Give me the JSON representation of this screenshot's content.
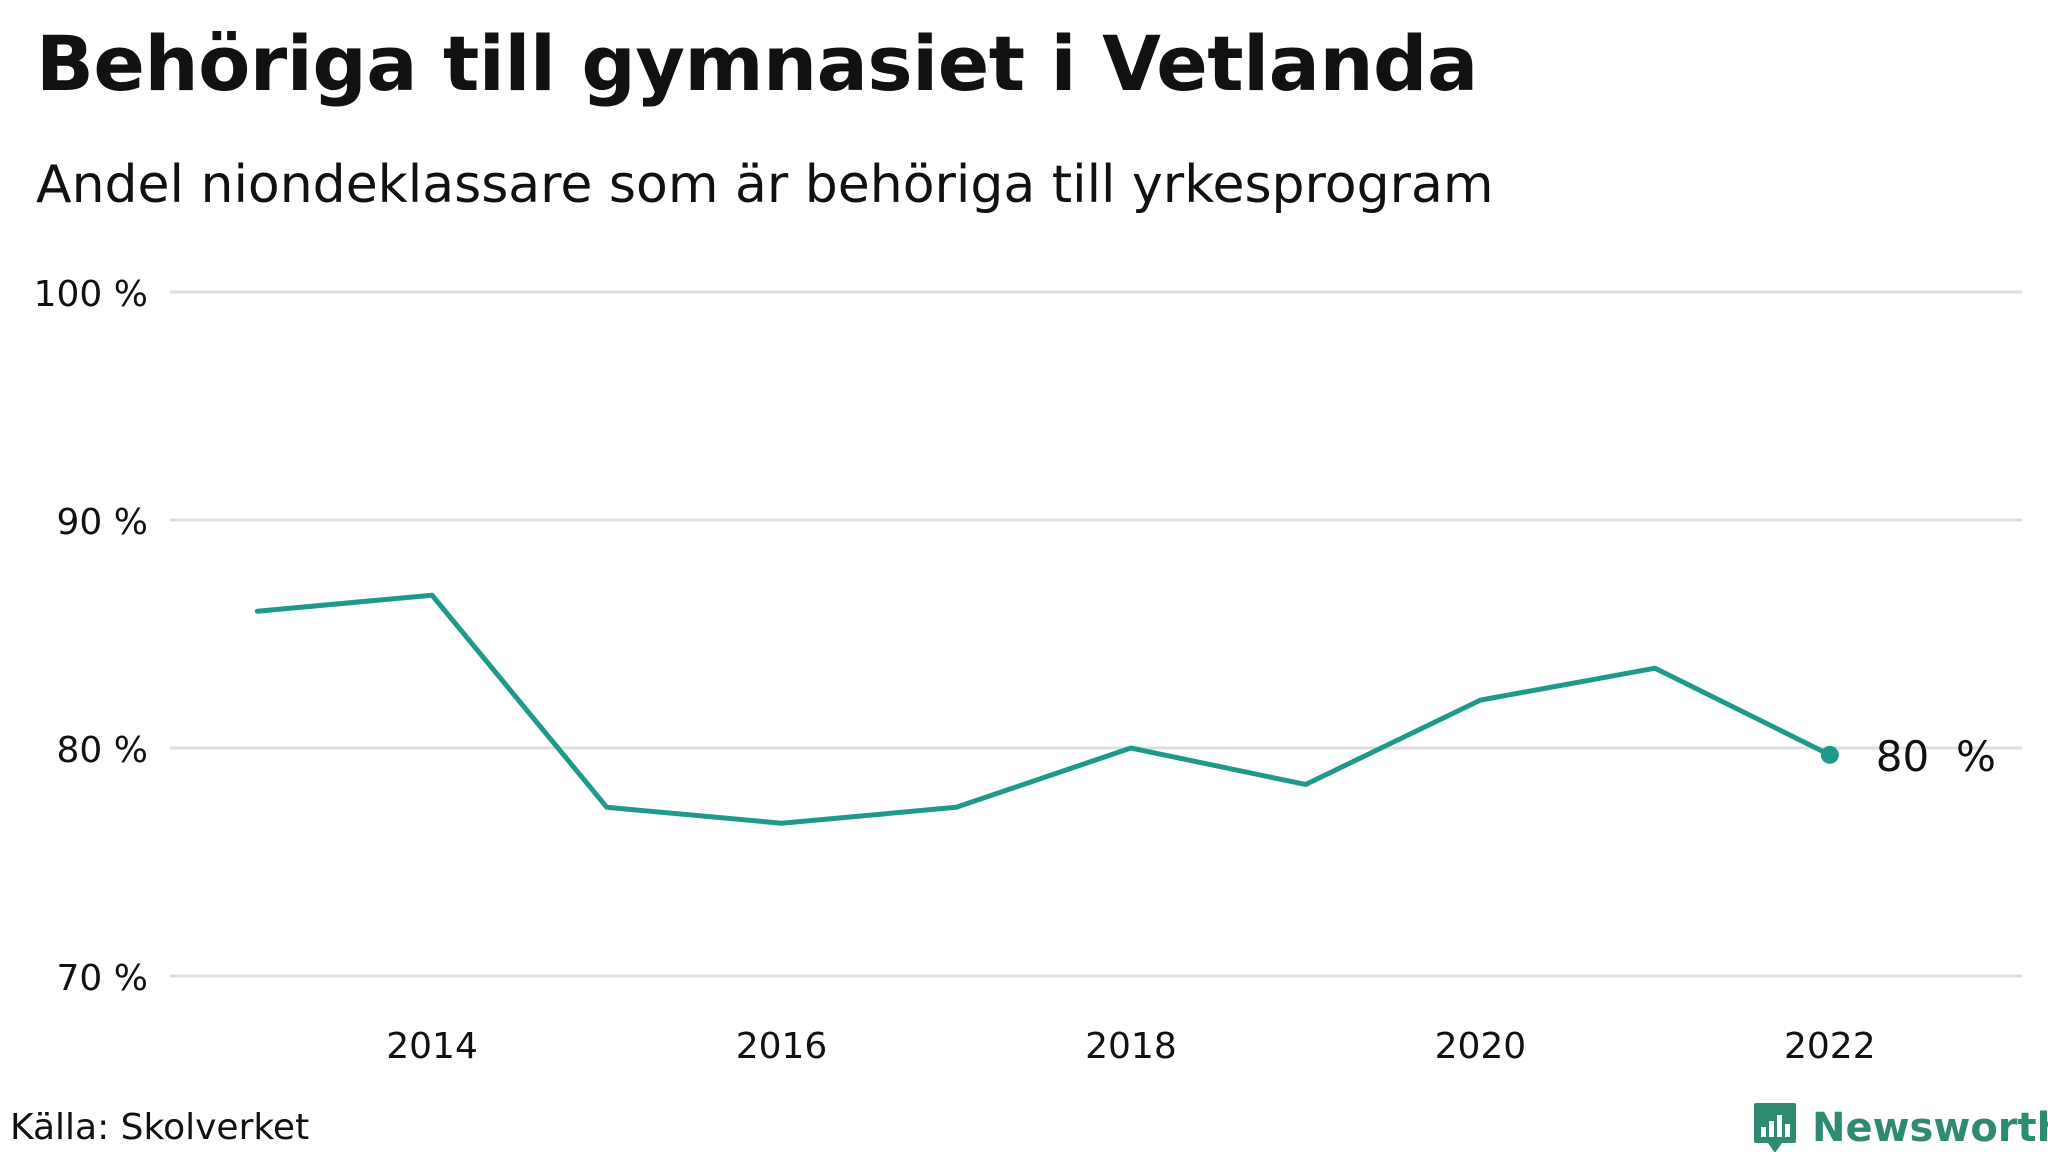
{
  "chart_data": {
    "type": "line",
    "title": "Behöriga till gymnasiet i Vetlanda",
    "subtitle": "Andel niondeklassare som är behöriga till yrkesprogram",
    "x": [
      2013,
      2014,
      2015,
      2016,
      2017,
      2018,
      2019,
      2020,
      2021,
      2022
    ],
    "series": [
      {
        "values": [
          86.0,
          86.7,
          77.4,
          76.7,
          77.4,
          80.0,
          78.4,
          82.1,
          83.5,
          79.7
        ]
      }
    ],
    "x_ticks": [
      2014,
      2016,
      2018,
      2020,
      2022
    ],
    "x_tick_labels": [
      "2014",
      "2016",
      "2018",
      "2020",
      "2022"
    ],
    "y_ticks": [
      70,
      80,
      90,
      100
    ],
    "y_tick_labels": [
      "70 %",
      "80 %",
      "90 %",
      "100 %"
    ],
    "ylim": [
      70,
      100
    ],
    "xlim": [
      2012.5,
      2023.1
    ],
    "grid": true,
    "last_value_label": "80  %",
    "line_color": "#1f9a8a",
    "grid_color": "#dedede"
  },
  "footer": {
    "source": "Källa: Skolverket",
    "brand": "Newsworthy",
    "brand_icon": "newsworthy-logo-icon",
    "brand_color": "#2e8b71"
  }
}
